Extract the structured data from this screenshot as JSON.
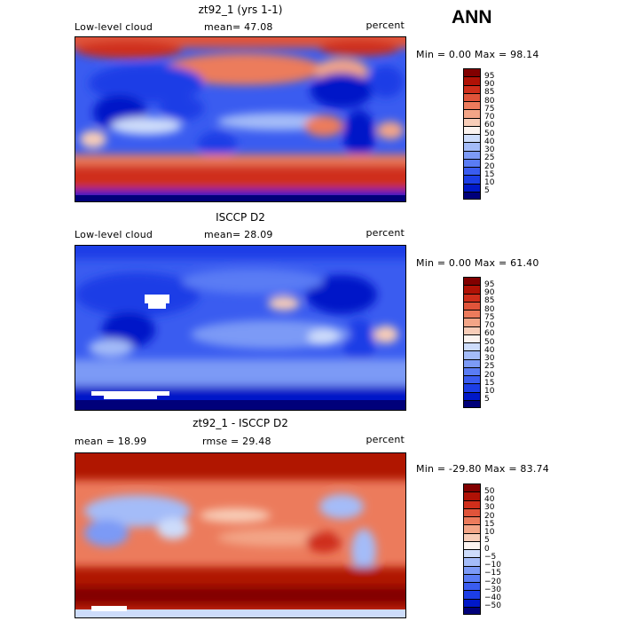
{
  "season": "ANN",
  "chart_data": [
    {
      "type": "heatmap",
      "title": "zt92_1 (yrs 1-1)",
      "variable": "Low-level cloud",
      "mean_label": "mean=  47.08",
      "mean": 47.08,
      "units": "percent",
      "minmax_label": "Min =   0.00 Max =  98.14",
      "min": 0.0,
      "max": 98.14,
      "levels": [
        5,
        10,
        15,
        20,
        25,
        30,
        40,
        50,
        60,
        70,
        75,
        80,
        85,
        90,
        95
      ],
      "level_labels": [
        "5",
        "10",
        "15",
        "20",
        "25",
        "30",
        "40",
        "50",
        "60",
        "70",
        "75",
        "80",
        "85",
        "90",
        "95"
      ],
      "colors": [
        "#00007a",
        "#0018c8",
        "#1c3ee6",
        "#3a5cf0",
        "#5a7cf4",
        "#7c9af6",
        "#a4bcf8",
        "#cddcfa",
        "#fbf3ef",
        "#f8cdb8",
        "#f3a587",
        "#ec7b5c",
        "#e0543a",
        "#cf2e1b",
        "#b01206",
        "#820000"
      ]
    },
    {
      "type": "heatmap",
      "title": "ISCCP D2",
      "variable": "Low-level cloud",
      "mean_label": "mean=  28.09",
      "mean": 28.09,
      "units": "percent",
      "minmax_label": "Min =   0.00 Max =  61.40",
      "min": 0.0,
      "max": 61.4,
      "levels": [
        5,
        10,
        15,
        20,
        25,
        30,
        40,
        50,
        60,
        70,
        75,
        80,
        85,
        90,
        95
      ],
      "level_labels": [
        "5",
        "10",
        "15",
        "20",
        "25",
        "30",
        "40",
        "50",
        "60",
        "70",
        "75",
        "80",
        "85",
        "90",
        "95"
      ],
      "colors": [
        "#00007a",
        "#0018c8",
        "#1c3ee6",
        "#3a5cf0",
        "#5a7cf4",
        "#7c9af6",
        "#a4bcf8",
        "#cddcfa",
        "#fbf3ef",
        "#f8cdb8",
        "#f3a587",
        "#ec7b5c",
        "#e0543a",
        "#cf2e1b",
        "#b01206",
        "#820000"
      ]
    },
    {
      "type": "heatmap",
      "title": "zt92_1 - ISCCP D2",
      "variable": "",
      "mean_label": "mean =   18.99",
      "mean": 18.99,
      "rmse_label": "rmse =   29.48",
      "rmse": 29.48,
      "units": "percent",
      "minmax_label": "Min = -29.80 Max =  83.74",
      "min": -29.8,
      "max": 83.74,
      "levels": [
        -50,
        -40,
        -30,
        -20,
        -15,
        -10,
        -5,
        0,
        5,
        10,
        15,
        20,
        30,
        40,
        50
      ],
      "level_labels": [
        "−50",
        "−40",
        "−30",
        "−20",
        "−15",
        "−10",
        "−5",
        "0",
        "5",
        "10",
        "15",
        "20",
        "30",
        "40",
        "50"
      ],
      "colors": [
        "#00007a",
        "#0018c8",
        "#1c3ee6",
        "#3a5cf0",
        "#5a7cf4",
        "#7c9af6",
        "#a4bcf8",
        "#cddcfa",
        "#fbf3ef",
        "#f8cdb8",
        "#f3a587",
        "#ec7b5c",
        "#e0543a",
        "#cf2e1b",
        "#b01206",
        "#820000"
      ]
    }
  ]
}
